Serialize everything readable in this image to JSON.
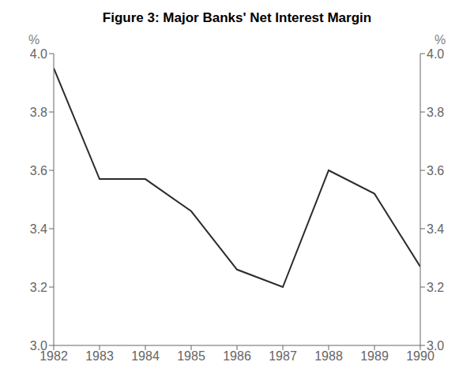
{
  "chart_data": {
    "type": "line",
    "title": "Figure 3: Major Banks' Net Interest Margin",
    "x": [
      1982,
      1983,
      1984,
      1985,
      1986,
      1987,
      1988,
      1989,
      1990
    ],
    "values": [
      3.95,
      3.57,
      3.57,
      3.46,
      3.26,
      3.2,
      3.6,
      3.52,
      3.27
    ],
    "color": "#2b2b2b",
    "xlim": [
      1982,
      1990
    ],
    "xticks": [
      1982,
      1983,
      1984,
      1985,
      1986,
      1987,
      1988,
      1989,
      1990
    ],
    "ylim": [
      3.0,
      4.0
    ],
    "yticks": [
      {
        "value": 3.0,
        "label": "3.0"
      },
      3.2,
      3.4,
      3.6,
      3.8,
      {
        "value": 4.0,
        "label": "4.0"
      }
    ],
    "y2lim": [
      3.0,
      4.0
    ],
    "y2ticks": [
      {
        "value": 3.0,
        "label": "3.0"
      },
      3.2,
      3.4,
      3.6,
      3.8,
      {
        "value": 4.0,
        "label": "4.0"
      }
    ],
    "ylabel": "%",
    "y2label": "%",
    "grid": false
  }
}
